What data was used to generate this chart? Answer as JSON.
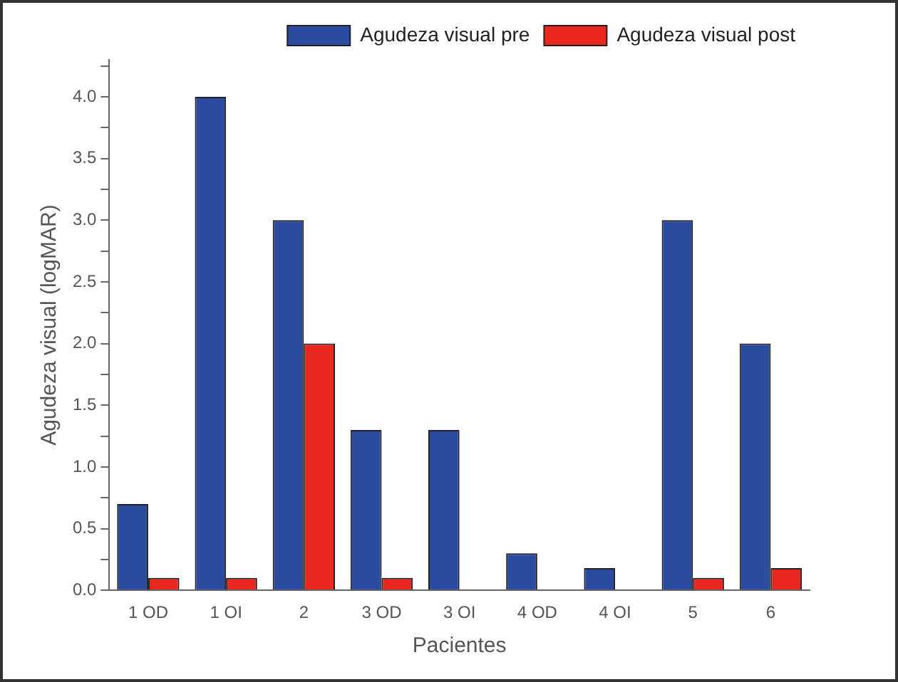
{
  "chart_data": {
    "type": "bar",
    "xlabel": "Pacientes",
    "ylabel": "Agudeza visual (logMAR)",
    "categories": [
      "1 OD",
      "1 OI",
      "2",
      "3 OD",
      "3 OI",
      "4 OD",
      "4 OI",
      "5",
      "6"
    ],
    "series": [
      {
        "name": "Agudeza visual pre",
        "color": "#2b4ba0",
        "values": [
          0.7,
          4.0,
          3.0,
          1.3,
          1.3,
          0.3,
          0.18,
          3.0,
          2.0
        ]
      },
      {
        "name": "Agudeza visual post",
        "color": "#e8281e",
        "values": [
          0.1,
          0.1,
          2.0,
          0.1,
          0,
          0,
          0,
          0.1,
          0.18
        ]
      }
    ],
    "ylim": [
      0,
      4.3
    ],
    "yticks": [
      {
        "value": 0,
        "label": "0.0"
      },
      {
        "value": 0.25,
        "label": null
      },
      {
        "value": 0.5,
        "label": "0.5"
      },
      {
        "value": 0.75,
        "label": null
      },
      {
        "value": 1,
        "label": "1.0"
      },
      {
        "value": 1.25,
        "label": null
      },
      {
        "value": 1.5,
        "label": "1.5"
      },
      {
        "value": 1.75,
        "label": null
      },
      {
        "value": 2,
        "label": "2.0"
      },
      {
        "value": 2.25,
        "label": null
      },
      {
        "value": 2.5,
        "label": "2.5"
      },
      {
        "value": 2.75,
        "label": null
      },
      {
        "value": 3,
        "label": "3.0"
      },
      {
        "value": 3.25,
        "label": null
      },
      {
        "value": 3.5,
        "label": "3.5"
      },
      {
        "value": 3.75,
        "label": null
      },
      {
        "value": 4,
        "label": "4.0"
      },
      {
        "value": 4.25,
        "label": null
      }
    ],
    "grid": false,
    "legend": "top right"
  }
}
